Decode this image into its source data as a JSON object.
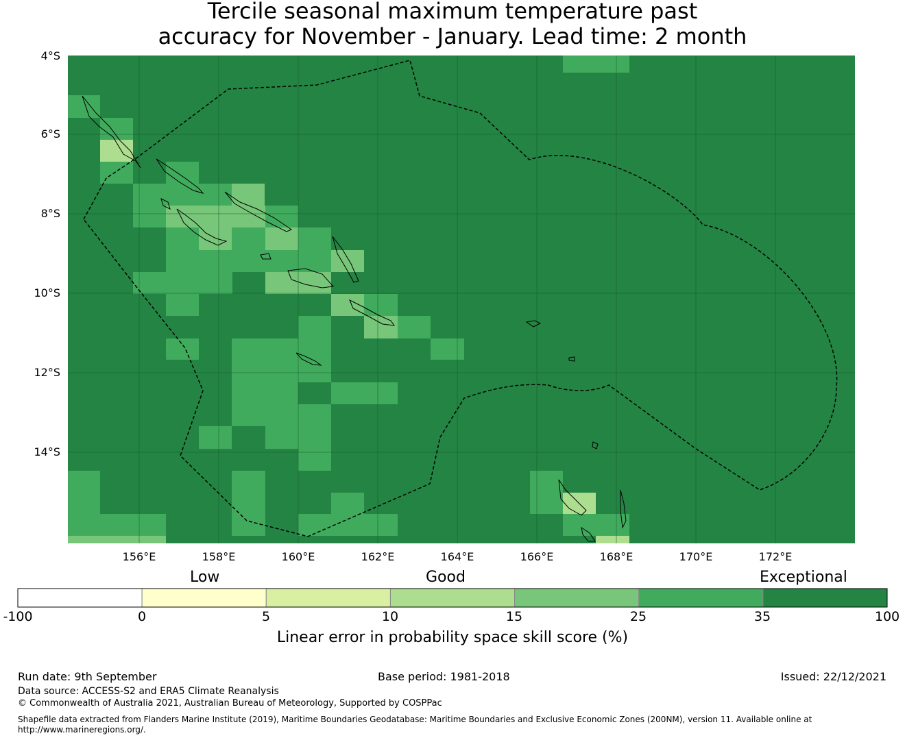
{
  "title": {
    "line1": "Tercile seasonal maximum temperature past",
    "line2": "accuracy for November - January. Lead time: 2 month"
  },
  "map": {
    "lat_labels": [
      "4°S",
      "6°S",
      "8°S",
      "10°S",
      "12°S",
      "14°S"
    ],
    "lon_labels": [
      "156°E",
      "158°E",
      "160°E",
      "162°E",
      "164°E",
      "166°E",
      "168°E",
      "170°E",
      "172°E"
    ],
    "extent": {
      "lon_min": 154.2,
      "lon_max": 174.0,
      "lat_min": -16.3,
      "lat_max": -4.0
    },
    "background_color": "#238443",
    "grid_cells": [
      {
        "lon": 168.0,
        "lat": -4.0,
        "color": "#41ab5d",
        "note": "edge"
      },
      {
        "lon": 154.6,
        "lat": -5.4,
        "color": "#41ab5d"
      },
      {
        "lon": 155.5,
        "lat": -5.95,
        "color": "#41ab5d"
      },
      {
        "lon": 155.5,
        "lat": -6.5,
        "color": "#addd8e"
      }
    ]
  },
  "colorbar": {
    "categories": [
      "Low",
      "Good",
      "Exceptional"
    ],
    "ticks": [
      "-100",
      "0",
      "5",
      "10",
      "15",
      "25",
      "35",
      "100"
    ],
    "colors": [
      "#ffffff",
      "#ffffcc",
      "#d9f0a3",
      "#addd8e",
      "#78c679",
      "#41ab5d",
      "#238443"
    ],
    "label": "Linear error in probability space skill score (%)"
  },
  "footer": {
    "run_date": "Run date: 9th September",
    "base_period": "Base period: 1981-2018",
    "issued": "Issued: 22/12/2021",
    "data_source": "Data source: ACCESS-S2 and ERA5 Climate Reanalysis",
    "copyright": "© Commonwealth of Australia 2021, Australian Bureau of Meteorology, Supported by COSPPac",
    "shapefile_line1": "Shapefile data extracted from Flanders Marine Institute (2019), Maritime Boundaries Geodatabase: Maritime Boundaries and Exclusive Economic Zones (200NM), version 11. Available online at",
    "shapefile_line2": "http://www.marineregions.org/."
  }
}
